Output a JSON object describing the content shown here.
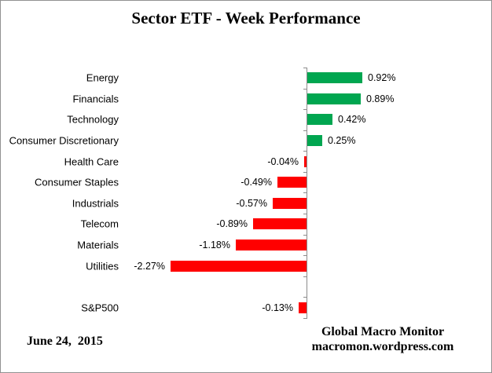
{
  "title": "Sector ETF - Week Performance",
  "footer": {
    "date": "June 24,  2015",
    "attribution_line1": "Global Macro Monitor",
    "attribution_line2": "macromon.wordpress.com"
  },
  "colors": {
    "positive_bar": "#00A650",
    "negative_bar": "#FF0000",
    "axis": "#8C8C8C",
    "border": "#919191",
    "text": "#000000"
  },
  "chart_data": {
    "type": "bar",
    "orientation": "horizontal",
    "title": "Sector ETF - Week Performance",
    "unit": "%",
    "categories": [
      "Energy",
      "Financials",
      "Technology",
      "Consumer Discretionary",
      "Health Care",
      "Consumer Staples",
      "Industrials",
      "Telecom",
      "Materials",
      "Utilities",
      "",
      "S&P500"
    ],
    "values": [
      0.92,
      0.89,
      0.42,
      0.25,
      -0.04,
      -0.49,
      -0.57,
      -0.89,
      -1.18,
      -2.27,
      null,
      -0.13
    ],
    "data_labels": [
      "0.92%",
      "0.89%",
      "0.42%",
      "0.25%",
      "-0.04%",
      "-0.49%",
      "-0.57%",
      "-0.89%",
      "-1.18%",
      "-2.27%",
      null,
      "-0.13%"
    ],
    "xlim": [
      -2.5,
      1.5
    ],
    "grid": false,
    "legend": false,
    "axis_ticks": "outside-left-of-category-axis",
    "positive_color": "#00A650",
    "negative_color": "#FF0000"
  }
}
